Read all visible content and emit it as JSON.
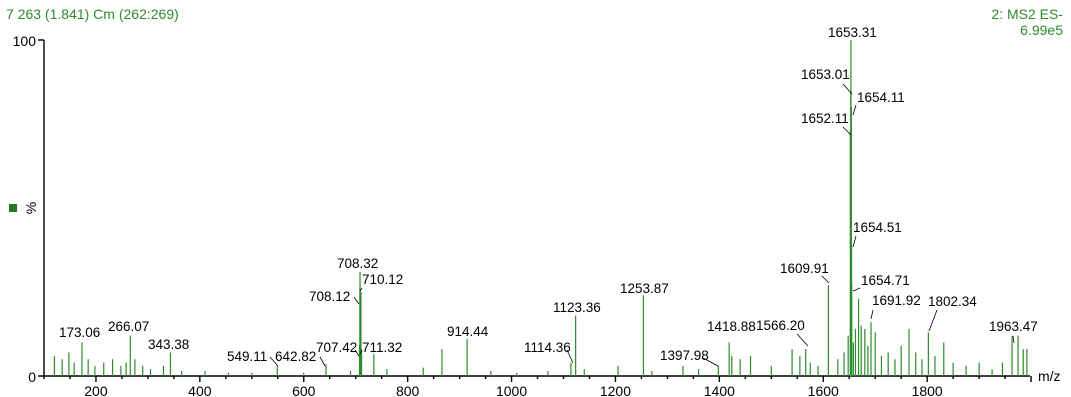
{
  "header": {
    "scan_info": "7 263 (1.841) Cm (262:269)",
    "function_line1": "2: MS2 ES-",
    "function_line2": "6.99e5"
  },
  "colors": {
    "trace": "#2e8b2e",
    "axis": "#000000",
    "marker": "#1f7a1f"
  },
  "chart_data": {
    "type": "bar",
    "title": "",
    "xlabel": "m/z",
    "ylabel": "%",
    "xlim": [
      100,
      2000
    ],
    "ylim": [
      0,
      100
    ],
    "x_ticks": [
      200,
      400,
      600,
      800,
      1000,
      1200,
      1400,
      1600,
      1800
    ],
    "y_ticks": [
      0,
      100
    ],
    "y_tick_labels": [
      "0",
      "100"
    ],
    "labeled_peaks": [
      {
        "mz": 173.06,
        "intensity": 10,
        "label": "173.06"
      },
      {
        "mz": 266.07,
        "intensity": 12,
        "label": "266.07"
      },
      {
        "mz": 343.38,
        "intensity": 7,
        "label": "343.38"
      },
      {
        "mz": 549.11,
        "intensity": 3,
        "label": "549.11"
      },
      {
        "mz": 642.82,
        "intensity": 3.5,
        "label": "642.82"
      },
      {
        "mz": 707.42,
        "intensity": 9,
        "label": "707.42"
      },
      {
        "mz": 708.12,
        "intensity": 26,
        "label": "708.12"
      },
      {
        "mz": 708.32,
        "intensity": 31,
        "label": "708.32"
      },
      {
        "mz": 710.12,
        "intensity": 25,
        "label": "710.12"
      },
      {
        "mz": 711.32,
        "intensity": 8,
        "label": "711.32"
      },
      {
        "mz": 914.44,
        "intensity": 11,
        "label": "914.44"
      },
      {
        "mz": 1114.36,
        "intensity": 4,
        "label": "1114.36"
      },
      {
        "mz": 1123.36,
        "intensity": 18,
        "label": "1123.36"
      },
      {
        "mz": 1253.87,
        "intensity": 24,
        "label": "1253.87"
      },
      {
        "mz": 1397.98,
        "intensity": 3,
        "label": "1397.98"
      },
      {
        "mz": 1418.88,
        "intensity": 10,
        "label": "1418.88"
      },
      {
        "mz": 1566.2,
        "intensity": 8,
        "label": "1566.20"
      },
      {
        "mz": 1609.91,
        "intensity": 27,
        "label": "1609.91"
      },
      {
        "mz": 1652.11,
        "intensity": 73,
        "label": "1652.11"
      },
      {
        "mz": 1653.01,
        "intensity": 85,
        "label": "1653.01"
      },
      {
        "mz": 1653.31,
        "intensity": 100,
        "label": "1653.31"
      },
      {
        "mz": 1654.11,
        "intensity": 80,
        "label": "1654.11"
      },
      {
        "mz": 1654.51,
        "intensity": 39,
        "label": "1654.51"
      },
      {
        "mz": 1654.71,
        "intensity": 27,
        "label": "1654.71"
      },
      {
        "mz": 1691.92,
        "intensity": 16,
        "label": "1691.92"
      },
      {
        "mz": 1802.34,
        "intensity": 13,
        "label": "1802.34"
      },
      {
        "mz": 1963.47,
        "intensity": 12,
        "label": "1963.47"
      }
    ],
    "minor_peaks": [
      {
        "mz": 120,
        "intensity": 6
      },
      {
        "mz": 135,
        "intensity": 5
      },
      {
        "mz": 148,
        "intensity": 7
      },
      {
        "mz": 158,
        "intensity": 4
      },
      {
        "mz": 185,
        "intensity": 5
      },
      {
        "mz": 198,
        "intensity": 3
      },
      {
        "mz": 215,
        "intensity": 4
      },
      {
        "mz": 232,
        "intensity": 5
      },
      {
        "mz": 248,
        "intensity": 3
      },
      {
        "mz": 258,
        "intensity": 4
      },
      {
        "mz": 275,
        "intensity": 5
      },
      {
        "mz": 290,
        "intensity": 3
      },
      {
        "mz": 305,
        "intensity": 2
      },
      {
        "mz": 330,
        "intensity": 3
      },
      {
        "mz": 365,
        "intensity": 1.5
      },
      {
        "mz": 410,
        "intensity": 1.5
      },
      {
        "mz": 455,
        "intensity": 1
      },
      {
        "mz": 500,
        "intensity": 1
      },
      {
        "mz": 600,
        "intensity": 1
      },
      {
        "mz": 690,
        "intensity": 1.5
      },
      {
        "mz": 735,
        "intensity": 6.5
      },
      {
        "mz": 760,
        "intensity": 2
      },
      {
        "mz": 830,
        "intensity": 2.5
      },
      {
        "mz": 866,
        "intensity": 8
      },
      {
        "mz": 960,
        "intensity": 1.5
      },
      {
        "mz": 1010,
        "intensity": 1
      },
      {
        "mz": 1070,
        "intensity": 1.5
      },
      {
        "mz": 1140,
        "intensity": 2
      },
      {
        "mz": 1205,
        "intensity": 3
      },
      {
        "mz": 1270,
        "intensity": 1.5
      },
      {
        "mz": 1330,
        "intensity": 3
      },
      {
        "mz": 1360,
        "intensity": 2
      },
      {
        "mz": 1424,
        "intensity": 6
      },
      {
        "mz": 1440,
        "intensity": 5
      },
      {
        "mz": 1460,
        "intensity": 6
      },
      {
        "mz": 1500,
        "intensity": 3
      },
      {
        "mz": 1540,
        "intensity": 8
      },
      {
        "mz": 1555,
        "intensity": 6
      },
      {
        "mz": 1575,
        "intensity": 4
      },
      {
        "mz": 1590,
        "intensity": 3
      },
      {
        "mz": 1628,
        "intensity": 5
      },
      {
        "mz": 1640,
        "intensity": 7
      },
      {
        "mz": 1648,
        "intensity": 12
      },
      {
        "mz": 1658,
        "intensity": 10
      },
      {
        "mz": 1662,
        "intensity": 14
      },
      {
        "mz": 1668,
        "intensity": 23
      },
      {
        "mz": 1673,
        "intensity": 15
      },
      {
        "mz": 1680,
        "intensity": 14
      },
      {
        "mz": 1686,
        "intensity": 9
      },
      {
        "mz": 1700,
        "intensity": 13
      },
      {
        "mz": 1712,
        "intensity": 6
      },
      {
        "mz": 1725,
        "intensity": 7
      },
      {
        "mz": 1738,
        "intensity": 5
      },
      {
        "mz": 1750,
        "intensity": 9
      },
      {
        "mz": 1765,
        "intensity": 14
      },
      {
        "mz": 1778,
        "intensity": 7
      },
      {
        "mz": 1790,
        "intensity": 5
      },
      {
        "mz": 1815,
        "intensity": 6
      },
      {
        "mz": 1832,
        "intensity": 10
      },
      {
        "mz": 1850,
        "intensity": 4
      },
      {
        "mz": 1875,
        "intensity": 3
      },
      {
        "mz": 1900,
        "intensity": 4
      },
      {
        "mz": 1925,
        "intensity": 2
      },
      {
        "mz": 1945,
        "intensity": 4
      },
      {
        "mz": 1975,
        "intensity": 12
      },
      {
        "mz": 1985,
        "intensity": 8
      },
      {
        "mz": 1992,
        "intensity": 8
      }
    ]
  }
}
